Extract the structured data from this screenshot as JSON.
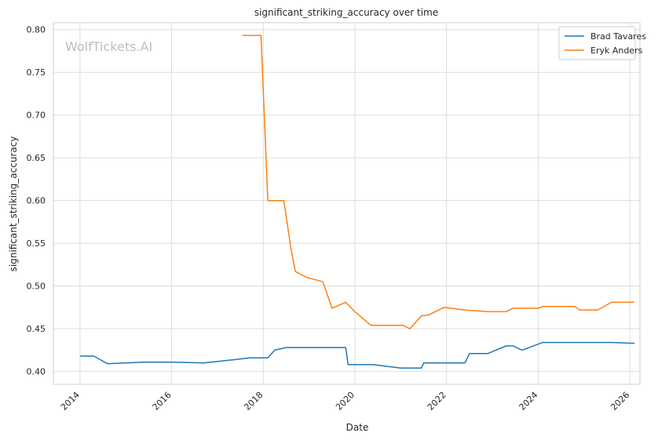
{
  "chart_data": {
    "type": "line",
    "title": "significant_striking_accuracy over time",
    "xlabel": "Date",
    "ylabel": "significant_striking_accuracy",
    "watermark": "WolfTickets.AI",
    "x_ticks": [
      "2014",
      "2016",
      "2018",
      "2020",
      "2022",
      "2024",
      "2026"
    ],
    "y_ticks": [
      "0.40",
      "0.45",
      "0.50",
      "0.55",
      "0.60",
      "0.65",
      "0.70",
      "0.75",
      "0.80"
    ],
    "xlim": [
      2013.42,
      2026.22
    ],
    "ylim": [
      0.385,
      0.808
    ],
    "grid": true,
    "legend_position": "top-right",
    "series": [
      {
        "name": "Brad Tavares",
        "color": "#1f77b4",
        "points": [
          [
            2014.0,
            0.418
          ],
          [
            2014.3,
            0.418
          ],
          [
            2014.6,
            0.409
          ],
          [
            2015.4,
            0.411
          ],
          [
            2016.0,
            0.411
          ],
          [
            2016.7,
            0.41
          ],
          [
            2017.4,
            0.414
          ],
          [
            2017.7,
            0.416
          ],
          [
            2018.1,
            0.416
          ],
          [
            2018.25,
            0.425
          ],
          [
            2018.5,
            0.428
          ],
          [
            2019.0,
            0.428
          ],
          [
            2019.8,
            0.428
          ],
          [
            2019.85,
            0.408
          ],
          [
            2020.4,
            0.408
          ],
          [
            2021.0,
            0.404
          ],
          [
            2021.2,
            0.404
          ],
          [
            2021.45,
            0.404
          ],
          [
            2021.5,
            0.41
          ],
          [
            2022.0,
            0.41
          ],
          [
            2022.4,
            0.41
          ],
          [
            2022.5,
            0.421
          ],
          [
            2022.9,
            0.421
          ],
          [
            2023.3,
            0.43
          ],
          [
            2023.45,
            0.43
          ],
          [
            2023.65,
            0.425
          ],
          [
            2024.1,
            0.434
          ],
          [
            2024.5,
            0.434
          ],
          [
            2025.0,
            0.434
          ],
          [
            2025.6,
            0.434
          ],
          [
            2026.1,
            0.433
          ]
        ]
      },
      {
        "name": "Eryk Anders",
        "color": "#ff7f0e",
        "points": [
          [
            2017.55,
            0.793
          ],
          [
            2017.95,
            0.793
          ],
          [
            2018.1,
            0.6
          ],
          [
            2018.45,
            0.6
          ],
          [
            2018.6,
            0.545
          ],
          [
            2018.7,
            0.517
          ],
          [
            2018.95,
            0.51
          ],
          [
            2019.3,
            0.505
          ],
          [
            2019.5,
            0.474
          ],
          [
            2019.8,
            0.481
          ],
          [
            2020.0,
            0.47
          ],
          [
            2020.35,
            0.454
          ],
          [
            2021.05,
            0.454
          ],
          [
            2021.2,
            0.45
          ],
          [
            2021.45,
            0.465
          ],
          [
            2021.6,
            0.466
          ],
          [
            2021.95,
            0.475
          ],
          [
            2022.4,
            0.472
          ],
          [
            2022.9,
            0.47
          ],
          [
            2023.3,
            0.47
          ],
          [
            2023.45,
            0.474
          ],
          [
            2024.0,
            0.474
          ],
          [
            2024.1,
            0.476
          ],
          [
            2024.8,
            0.476
          ],
          [
            2024.9,
            0.472
          ],
          [
            2025.3,
            0.472
          ],
          [
            2025.6,
            0.481
          ],
          [
            2026.1,
            0.481
          ]
        ]
      }
    ]
  }
}
